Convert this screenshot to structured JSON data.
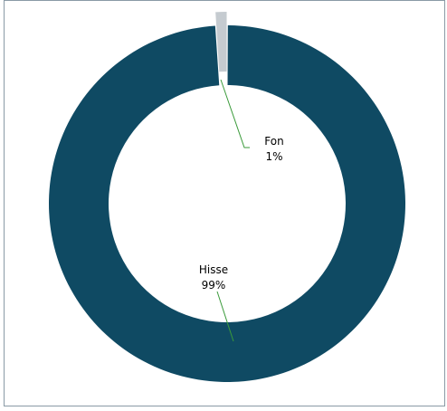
{
  "chart_data": {
    "type": "pie",
    "style": "donut",
    "categories": [
      "Fon",
      "Hisse"
    ],
    "values": [
      1,
      99
    ],
    "data_labels": [
      {
        "name": "Fon",
        "value": "1%"
      },
      {
        "name": "Hisse",
        "value": "99%"
      }
    ],
    "colors": {
      "Fon": "#c5cbd0",
      "Hisse": "#0f4a63",
      "leader_line": "#3a9a3a"
    },
    "legend": "none"
  }
}
